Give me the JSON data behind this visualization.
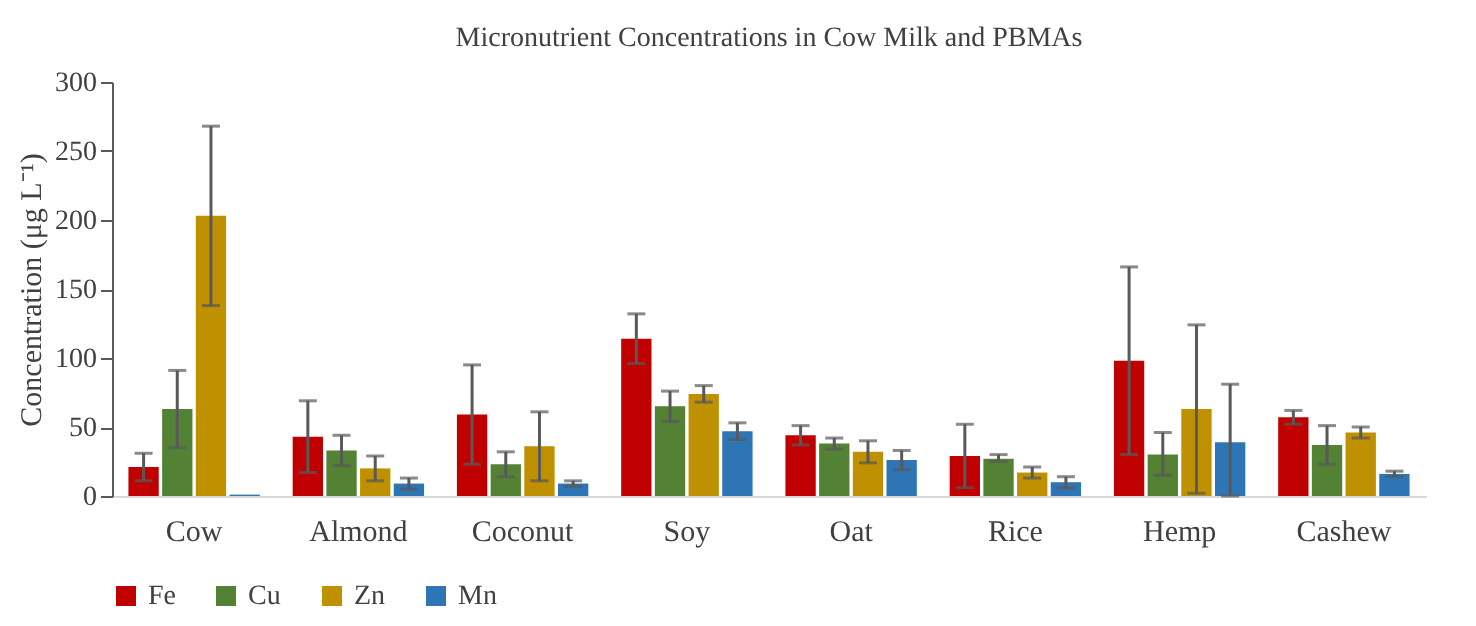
{
  "chart_data": {
    "type": "bar",
    "title": "Micronutrient Concentrations in Cow Milk and PBMAs",
    "ylabel": "Concentration (μg L⁻¹)",
    "categories": [
      "Cow",
      "Almond",
      "Coconut",
      "Soy",
      "Oat",
      "Rice",
      "Hemp",
      "Cashew"
    ],
    "ylim": [
      0,
      300
    ],
    "yticks": [
      0,
      50,
      100,
      150,
      200,
      250,
      300
    ],
    "grid": false,
    "legend": "bottom",
    "series": [
      {
        "name": "Fe",
        "color": "#c00000",
        "values": [
          21,
          43,
          59,
          114,
          44,
          29,
          98,
          57
        ],
        "errors": [
          [
            11,
            31
          ],
          [
            17,
            69
          ],
          [
            23,
            95
          ],
          [
            96,
            132
          ],
          [
            37,
            51
          ],
          [
            6,
            52
          ],
          [
            30,
            166
          ],
          [
            52,
            62
          ]
        ]
      },
      {
        "name": "Cu",
        "color": "#548235",
        "values": [
          63,
          33,
          23,
          65,
          38,
          27,
          30,
          37
        ],
        "errors": [
          [
            35,
            91
          ],
          [
            22,
            44
          ],
          [
            14,
            32
          ],
          [
            54,
            76
          ],
          [
            34,
            42
          ],
          [
            25,
            30
          ],
          [
            15,
            46
          ],
          [
            23,
            51
          ]
        ]
      },
      {
        "name": "Zn",
        "color": "#bf9000",
        "values": [
          203,
          20,
          36,
          74,
          32,
          17,
          63,
          46
        ],
        "errors": [
          [
            138,
            268
          ],
          [
            11,
            29
          ],
          [
            11,
            61
          ],
          [
            68,
            80
          ],
          [
            24,
            40
          ],
          [
            13,
            21
          ],
          [
            2,
            124
          ],
          [
            42,
            50
          ]
        ]
      },
      {
        "name": "Mn",
        "color": "#2e75b6",
        "values": [
          1,
          9,
          9,
          47,
          26,
          10,
          39,
          16
        ],
        "errors": [
          null,
          [
            5,
            13
          ],
          [
            7,
            11
          ],
          [
            41,
            53
          ],
          [
            19,
            33
          ],
          [
            6,
            14
          ],
          [
            0,
            81
          ],
          [
            14,
            18
          ]
        ]
      }
    ]
  }
}
